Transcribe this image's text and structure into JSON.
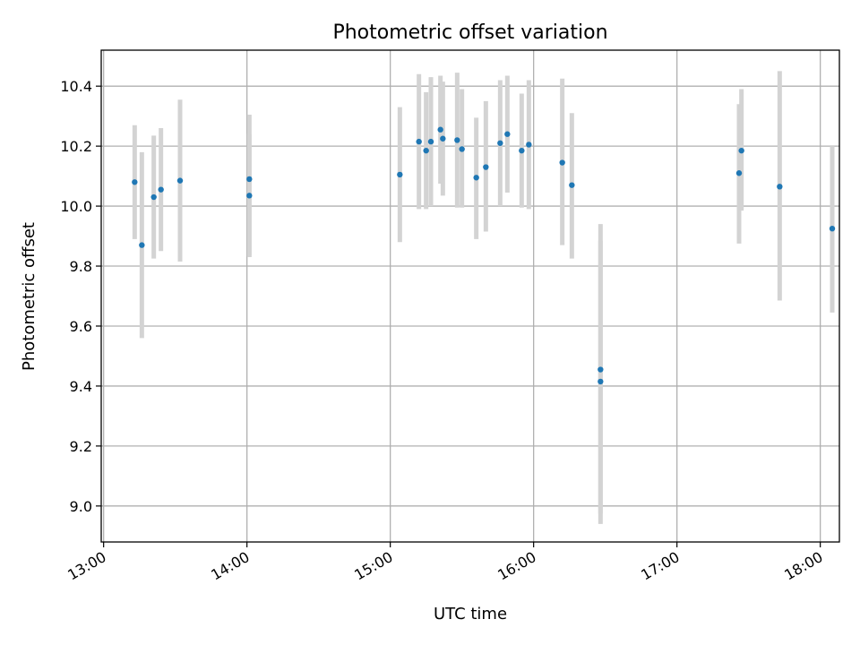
{
  "chart_data": {
    "type": "scatter",
    "title": "Photometric offset variation",
    "xlabel": "UTC time",
    "ylabel": "Photometric offset",
    "x_ticks": [
      "13:00",
      "14:00",
      "15:00",
      "16:00",
      "17:00",
      "18:00"
    ],
    "y_ticks": [
      "9.0",
      "9.2",
      "9.4",
      "9.6",
      "9.8",
      "10.0",
      "10.2",
      "10.4"
    ],
    "xlim": [
      "12:59",
      "18:08"
    ],
    "ylim": [
      8.88,
      10.52
    ],
    "grid": true,
    "x_tick_rotation": "slanted",
    "colors": {
      "points": "#1f77b4",
      "error_bars": "#d3d3d3",
      "grid": "#b0b0b0"
    },
    "series": [
      {
        "x": [
          "13:13",
          "13:16",
          "13:21",
          "13:24",
          "13:32",
          "14:01",
          "14:01",
          "15:04",
          "15:12",
          "15:15",
          "15:17",
          "15:21",
          "15:22",
          "15:28",
          "15:30",
          "15:36",
          "15:40",
          "15:46",
          "15:49",
          "15:55",
          "15:58",
          "16:12",
          "16:16",
          "16:28",
          "16:28",
          "17:26",
          "17:27",
          "17:43",
          "18:05"
        ],
        "y": [
          10.08,
          9.87,
          10.03,
          10.055,
          10.085,
          10.09,
          10.035,
          10.105,
          10.215,
          10.185,
          10.215,
          10.255,
          10.225,
          10.22,
          10.19,
          10.095,
          10.13,
          10.21,
          10.24,
          10.185,
          10.205,
          10.145,
          10.07,
          9.415,
          9.455,
          10.11,
          10.185,
          10.065,
          9.925
        ],
        "y_low": [
          9.89,
          9.56,
          9.825,
          9.85,
          9.815,
          9.83,
          9.835,
          9.88,
          9.99,
          9.99,
          10.0,
          10.075,
          10.035,
          9.995,
          9.995,
          9.89,
          9.915,
          10.0,
          10.045,
          9.995,
          9.99,
          9.87,
          9.825,
          8.94,
          8.975,
          9.875,
          9.985,
          9.685,
          9.645
        ],
        "y_high": [
          10.27,
          10.18,
          10.235,
          10.26,
          10.355,
          10.305,
          10.24,
          10.33,
          10.44,
          10.38,
          10.43,
          10.435,
          10.415,
          10.445,
          10.39,
          10.295,
          10.35,
          10.42,
          10.435,
          10.375,
          10.42,
          10.425,
          10.31,
          9.885,
          9.94,
          10.34,
          10.39,
          10.45,
          10.2
        ]
      }
    ]
  }
}
